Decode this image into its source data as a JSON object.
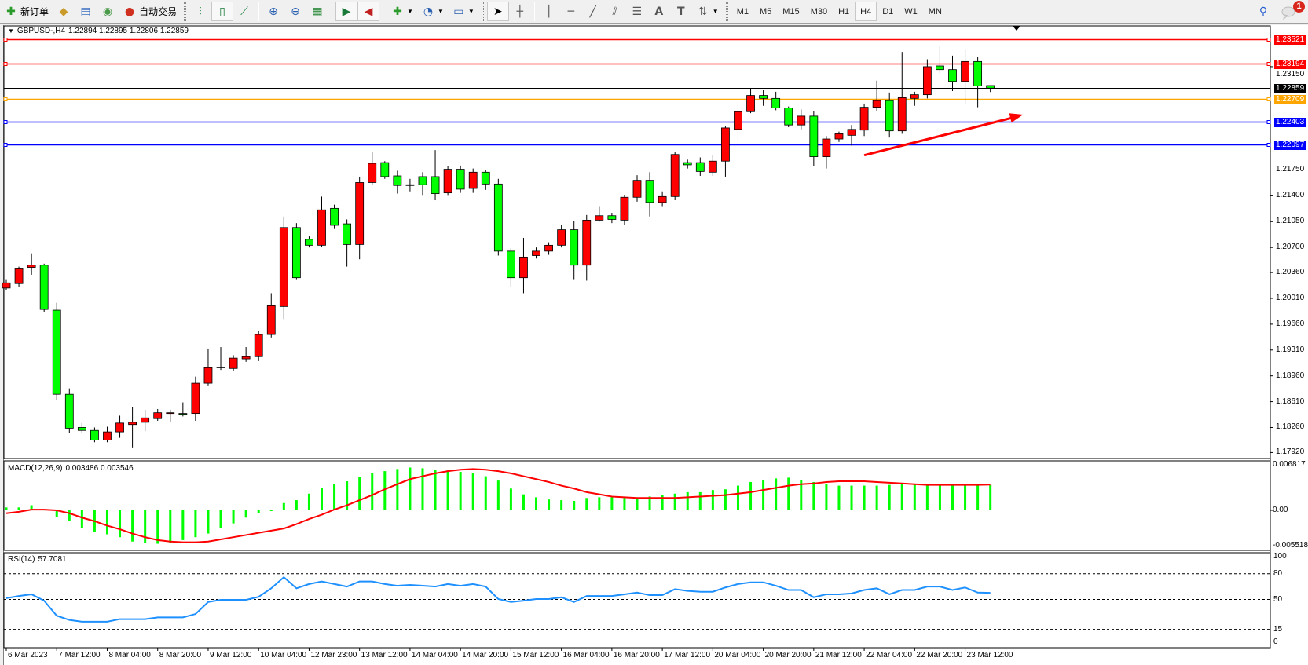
{
  "toolbar": {
    "new_order_label": "新订单",
    "auto_trading_label": "自动交易",
    "timeframes": [
      "M1",
      "M5",
      "M15",
      "M30",
      "H1",
      "H4",
      "D1",
      "W1",
      "MN"
    ],
    "active_timeframe": "H4",
    "notification_count": "1",
    "icons": [
      "new-order-icon",
      "market-watch-icon",
      "navigator-icon",
      "signals-icon",
      "auto-trading-icon",
      "bar-chart-icon",
      "candlestick-icon",
      "line-chart-icon",
      "zoom-in-icon",
      "zoom-out-icon",
      "tile-windows-icon",
      "autoscroll-icon",
      "chart-shift-icon",
      "indicators-icon",
      "periods-icon",
      "templates-icon",
      "cursor-icon",
      "crosshair-icon",
      "vertical-line-icon",
      "horizontal-line-icon",
      "trendline-icon",
      "equidistant-channel-icon",
      "fibonacci-icon",
      "text-icon",
      "text-label-icon",
      "arrows-icon",
      "search-icon",
      "chat-icon"
    ]
  },
  "chart": {
    "header": "GBPUSD-,H4",
    "ohlc_text": "1.22894 1.22895 1.22806 1.22859",
    "macd_label": "MACD(12,26,9)",
    "macd_values": "0.003486 0.003546",
    "rsi_label": "RSI(14)",
    "rsi_value": "57.7081"
  },
  "chart_data": [
    {
      "type": "candlestick",
      "symbol": "GBPUSD-",
      "timeframe": "H4",
      "bull_color": "#ff0000",
      "bear_color": "#00ff00",
      "ylim": [
        1.1785,
        1.2366
      ],
      "y_ticks": [
        "1.23150",
        "1.21750",
        "1.21400",
        "1.21050",
        "1.20700",
        "1.20360",
        "1.20010",
        "1.19660",
        "1.19310",
        "1.18960",
        "1.18610",
        "1.18260",
        "1.17920"
      ],
      "x_tick_labels": [
        "6 Mar 2023",
        "7 Mar 12:00",
        "8 Mar 04:00",
        "8 Mar 20:00",
        "9 Mar 12:00",
        "10 Mar 04:00",
        "12 Mar 23:00",
        "13 Mar 12:00",
        "14 Mar 04:00",
        "14 Mar 20:00",
        "15 Mar 12:00",
        "16 Mar 04:00",
        "16 Mar 20:00",
        "17 Mar 12:00",
        "20 Mar 04:00",
        "20 Mar 20:00",
        "21 Mar 12:00",
        "22 Mar 04:00",
        "22 Mar 20:00",
        "23 Mar 12:00"
      ],
      "x_tick_bar_step": 4,
      "ohlc": [
        [
          1.2015,
          1.2027,
          1.2012,
          1.2022
        ],
        [
          1.2021,
          1.2044,
          1.2016,
          1.2042
        ],
        [
          1.2043,
          1.2062,
          1.2033,
          1.2046
        ],
        [
          1.2046,
          1.2048,
          1.1982,
          1.1986
        ],
        [
          1.1985,
          1.1995,
          1.1863,
          1.1871
        ],
        [
          1.1871,
          1.1879,
          1.1818,
          1.1825
        ],
        [
          1.1826,
          1.1832,
          1.1819,
          1.1822
        ],
        [
          1.1822,
          1.1826,
          1.1806,
          1.1809
        ],
        [
          1.1809,
          1.1827,
          1.1806,
          1.182
        ],
        [
          1.182,
          1.1842,
          1.1812,
          1.1832
        ],
        [
          1.183,
          1.1854,
          1.1799,
          1.1833
        ],
        [
          1.1833,
          1.185,
          1.1821,
          1.1839
        ],
        [
          1.1838,
          1.1851,
          1.1835,
          1.1846
        ],
        [
          1.1845,
          1.185,
          1.1834,
          1.1846
        ],
        [
          1.1845,
          1.186,
          1.1841,
          1.1844
        ],
        [
          1.1845,
          1.1895,
          1.1835,
          1.1886
        ],
        [
          1.1886,
          1.1933,
          1.1882,
          1.1907
        ],
        [
          1.1907,
          1.1935,
          1.1904,
          1.1908
        ],
        [
          1.1906,
          1.1924,
          1.1903,
          1.192
        ],
        [
          1.1919,
          1.1935,
          1.1915,
          1.1922
        ],
        [
          1.1922,
          1.1957,
          1.1916,
          1.1952
        ],
        [
          1.1952,
          1.2008,
          1.1948,
          1.1991
        ],
        [
          1.199,
          1.2112,
          1.1973,
          1.2097
        ],
        [
          1.2097,
          1.2103,
          1.2027,
          1.2029
        ],
        [
          1.2081,
          1.2085,
          1.207,
          1.2073
        ],
        [
          1.2073,
          1.2139,
          1.2071,
          1.2121
        ],
        [
          1.2123,
          1.2128,
          1.2095,
          1.21
        ],
        [
          1.2102,
          1.2108,
          1.2044,
          1.2074
        ],
        [
          1.2074,
          1.2166,
          1.2054,
          1.2158
        ],
        [
          1.2158,
          1.2199,
          1.2155,
          1.2184
        ],
        [
          1.2185,
          1.2187,
          1.2163,
          1.2166
        ],
        [
          1.2167,
          1.2174,
          1.2143,
          1.2154
        ],
        [
          1.2155,
          1.2163,
          1.2146,
          1.2154
        ],
        [
          1.2166,
          1.2172,
          1.214,
          1.2155
        ],
        [
          1.2166,
          1.2202,
          1.2134,
          1.2143
        ],
        [
          1.2144,
          1.218,
          1.214,
          1.2176
        ],
        [
          1.2176,
          1.2181,
          1.2144,
          1.2149
        ],
        [
          1.215,
          1.2177,
          1.2144,
          1.2172
        ],
        [
          1.2172,
          1.2175,
          1.2148,
          1.2156
        ],
        [
          1.2156,
          1.2163,
          1.2059,
          1.2065
        ],
        [
          1.2065,
          1.2069,
          1.2016,
          1.2029
        ],
        [
          1.2029,
          1.2083,
          1.2008,
          1.2057
        ],
        [
          1.2059,
          1.207,
          1.2055,
          1.2065
        ],
        [
          1.2065,
          1.2077,
          1.206,
          1.2073
        ],
        [
          1.2073,
          1.21,
          1.207,
          1.2094
        ],
        [
          1.2094,
          1.2106,
          1.2027,
          1.2046
        ],
        [
          1.2046,
          1.2114,
          1.2025,
          1.2107
        ],
        [
          1.2107,
          1.2125,
          1.2105,
          1.2113
        ],
        [
          1.2113,
          1.2117,
          1.2103,
          1.2108
        ],
        [
          1.2107,
          1.2141,
          1.21,
          1.2138
        ],
        [
          1.2138,
          1.2168,
          1.2132,
          1.2161
        ],
        [
          1.2161,
          1.2172,
          1.2112,
          1.2131
        ],
        [
          1.2131,
          1.2146,
          1.2125,
          1.2139
        ],
        [
          1.2139,
          1.22,
          1.2134,
          1.2196
        ],
        [
          1.2185,
          1.2189,
          1.2177,
          1.2182
        ],
        [
          1.2185,
          1.2192,
          1.2167,
          1.2173
        ],
        [
          1.2172,
          1.2195,
          1.2167,
          1.2187
        ],
        [
          1.2187,
          1.2234,
          1.2166,
          1.2232
        ],
        [
          1.223,
          1.2268,
          1.2216,
          1.2254
        ],
        [
          1.2254,
          1.2286,
          1.2252,
          1.2276
        ],
        [
          1.2276,
          1.2283,
          1.2262,
          1.2272
        ],
        [
          1.2272,
          1.2281,
          1.2256,
          1.2259
        ],
        [
          1.2259,
          1.2261,
          1.2233,
          1.2236
        ],
        [
          1.2236,
          1.2257,
          1.223,
          1.2248
        ],
        [
          1.2248,
          1.2255,
          1.218,
          1.2193
        ],
        [
          1.2193,
          1.2221,
          1.2177,
          1.2217
        ],
        [
          1.2217,
          1.2227,
          1.2213,
          1.2224
        ],
        [
          1.2222,
          1.2236,
          1.2208,
          1.223
        ],
        [
          1.2229,
          1.2265,
          1.2221,
          1.226
        ],
        [
          1.226,
          1.2296,
          1.2255,
          1.2269
        ],
        [
          1.2269,
          1.228,
          1.2219,
          1.2228
        ],
        [
          1.2228,
          1.2335,
          1.2224,
          1.2273
        ],
        [
          1.2272,
          1.2281,
          1.2262,
          1.2277
        ],
        [
          1.2277,
          1.2325,
          1.2272,
          1.2315
        ],
        [
          1.2316,
          1.2343,
          1.2306,
          1.2311
        ],
        [
          1.2311,
          1.233,
          1.2282,
          1.2295
        ],
        [
          1.2295,
          1.2338,
          1.2264,
          1.2322
        ],
        [
          1.2322,
          1.2328,
          1.226,
          1.2289
        ],
        [
          1.22894,
          1.22895,
          1.22806,
          1.22859
        ]
      ],
      "horizontal_lines": [
        {
          "price": "1.23521",
          "color": "#ff0000"
        },
        {
          "price": "1.23194",
          "color": "#ff0000"
        },
        {
          "price": "1.22859",
          "color": "#000000",
          "bid": true
        },
        {
          "price": "1.22709",
          "color": "#ffa500"
        },
        {
          "price": "1.22403",
          "color": "#0000ff"
        },
        {
          "price": "1.22097",
          "color": "#0000ff"
        }
      ],
      "trend_arrow": {
        "color": "#ff0000",
        "from": {
          "bar": 68,
          "price": 1.2195
        },
        "to": {
          "bar": 80.6,
          "price": 1.225
        }
      }
    },
    {
      "type": "bar+line",
      "name": "MACD(12,26,9)",
      "ylim": [
        -0.005518,
        0.006817
      ],
      "y_ticks": [
        "0.006817",
        "0.00",
        "-0.005518"
      ],
      "histogram_color": "#00ff00",
      "signal_color": "#ff0000",
      "histogram": [
        0.0004,
        0.0004,
        0.0007,
        0.0001,
        -0.0009,
        -0.0015,
        -0.0024,
        -0.003,
        -0.0033,
        -0.0037,
        -0.0043,
        -0.0045,
        -0.0046,
        -0.0045,
        -0.0041,
        -0.0037,
        -0.0032,
        -0.0024,
        -0.0018,
        -0.001,
        -0.0004,
        -0.0001,
        0.001,
        0.0014,
        0.0023,
        0.0031,
        0.0036,
        0.004,
        0.0046,
        0.0051,
        0.0054,
        0.0057,
        0.0059,
        0.0058,
        0.0056,
        0.0055,
        0.0053,
        0.0051,
        0.0047,
        0.0041,
        0.003,
        0.0022,
        0.0018,
        0.0015,
        0.0014,
        0.0013,
        0.0017,
        0.0018,
        0.0018,
        0.0017,
        0.0017,
        0.0019,
        0.0021,
        0.0023,
        0.0025,
        0.0025,
        0.0028,
        0.0029,
        0.0034,
        0.0039,
        0.0042,
        0.0044,
        0.0045,
        0.0042,
        0.0039,
        0.0036,
        0.0034,
        0.0034,
        0.0034,
        0.0034,
        0.0035,
        0.0036,
        0.0036,
        0.0036,
        0.0036,
        0.0035,
        0.0035,
        0.0035,
        0.003486
      ],
      "signal": [
        -0.0004,
        -0.0002,
        0.0001,
        0.0001,
        0.0,
        -0.0004,
        -0.001,
        -0.0015,
        -0.0021,
        -0.0026,
        -0.0032,
        -0.0037,
        -0.0041,
        -0.0043,
        -0.0044,
        -0.0044,
        -0.0043,
        -0.004,
        -0.0037,
        -0.0034,
        -0.0031,
        -0.0028,
        -0.0025,
        -0.0019,
        -0.0012,
        -0.0006,
        0.0001,
        0.0007,
        0.0014,
        0.0021,
        0.0029,
        0.0036,
        0.0043,
        0.0047,
        0.0051,
        0.0054,
        0.0056,
        0.0057,
        0.0056,
        0.0054,
        0.0051,
        0.0047,
        0.0043,
        0.0039,
        0.0034,
        0.003,
        0.0025,
        0.0022,
        0.0019,
        0.0018,
        0.0017,
        0.0017,
        0.0017,
        0.0017,
        0.0018,
        0.0019,
        0.002,
        0.0021,
        0.0023,
        0.0025,
        0.0028,
        0.0031,
        0.0034,
        0.0036,
        0.0037,
        0.0039,
        0.004,
        0.004,
        0.004,
        0.0039,
        0.0038,
        0.0037,
        0.0036,
        0.0035,
        0.0035,
        0.0035,
        0.0035,
        0.0035,
        0.003546
      ]
    },
    {
      "type": "line",
      "name": "RSI(14)",
      "ylim": [
        0,
        100
      ],
      "y_ticks": [
        "100",
        "80",
        "50",
        "15",
        "0"
      ],
      "levels": [
        80,
        50,
        15
      ],
      "color": "#1e90ff",
      "values": [
        51.5,
        54,
        56,
        48.5,
        31,
        26,
        24,
        24,
        24,
        27,
        27,
        27,
        29,
        29,
        29,
        33,
        47,
        49.5,
        49.5,
        49.5,
        53,
        63,
        76,
        63,
        68,
        71,
        68,
        65,
        71,
        71,
        68,
        66,
        67,
        66,
        65,
        68,
        66,
        68,
        65,
        50.5,
        47,
        48.5,
        50.5,
        50.5,
        52.5,
        47,
        54,
        54,
        54,
        56,
        58,
        55,
        55,
        62,
        60,
        59,
        59,
        64,
        68,
        70,
        70,
        66,
        61,
        61,
        52.5,
        56,
        56,
        57,
        61,
        63,
        56,
        61,
        61,
        65,
        65,
        61,
        64,
        58,
        57.7081
      ]
    }
  ]
}
